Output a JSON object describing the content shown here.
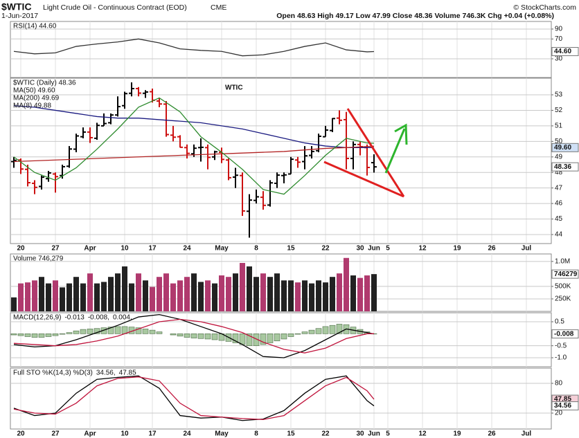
{
  "header": {
    "symbol": "$WTIC",
    "name": "Light Crude Oil - Continuous Contract (EOD)",
    "exchange": "CME",
    "date": "1-Jun-2017",
    "quote": "Open 48.63  High 49.17  Low 47.99  Close 48.36  Volume 746.3K  Chg +0.04 (+0.08%)",
    "credit": "© StockCharts.com"
  },
  "chart_data": {
    "type": "stock",
    "x": [
      "Mar 17",
      "Mar 20",
      "Mar 21",
      "Mar 22",
      "Mar 23",
      "Mar 24",
      "Mar 27",
      "Mar 28",
      "Mar 29",
      "Mar 30",
      "Mar 31",
      "Apr 3",
      "Apr 4",
      "Apr 5",
      "Apr 6",
      "Apr 7",
      "Apr 10",
      "Apr 11",
      "Apr 12",
      "Apr 13",
      "Apr 17",
      "Apr 18",
      "Apr 19",
      "Apr 20",
      "Apr 21",
      "Apr 24",
      "Apr 25",
      "Apr 26",
      "Apr 27",
      "Apr 28",
      "May 1",
      "May 2",
      "May 3",
      "May 4",
      "May 5",
      "May 8",
      "May 9",
      "May 10",
      "May 11",
      "May 12",
      "May 15",
      "May 16",
      "May 17",
      "May 18",
      "May 19",
      "May 22",
      "May 23",
      "May 24",
      "May 25",
      "May 26",
      "May 30",
      "May 31",
      "Jun 1"
    ],
    "xticks": [
      {
        "value": "Mar 20",
        "label": "20"
      },
      {
        "value": "Mar 27",
        "label": "27"
      },
      {
        "value": "Apr 3",
        "label": "Apr"
      },
      {
        "value": "Apr 10",
        "label": "10"
      },
      {
        "value": "Apr 17",
        "label": "17"
      },
      {
        "value": "Apr 24",
        "label": "24"
      },
      {
        "value": "May 1",
        "label": "May"
      },
      {
        "value": "May 8",
        "label": "8"
      },
      {
        "value": "May 15",
        "label": "15"
      },
      {
        "value": "May 22",
        "label": "22"
      },
      {
        "value": "May 30",
        "label": "30"
      },
      {
        "value": "Jun 1",
        "label": "Jun"
      },
      {
        "value": "Jun 5",
        "label": "5"
      },
      {
        "value": "Jun 12",
        "label": "12"
      },
      {
        "value": "Jun 19",
        "label": "19"
      },
      {
        "value": "Jun 26",
        "label": "26"
      },
      {
        "value": "Jul 3",
        "label": "Jul"
      }
    ],
    "panels": [
      {
        "type": "line",
        "title": "RSI(14) 44.60",
        "ylim": [
          -7.7,
          105.3
        ],
        "yticks": [
          90,
          70,
          30
        ],
        "grid": true,
        "markers": [
          {
            "value": 44.6,
            "label": "44.60",
            "color": "#ffffff"
          }
        ],
        "series": [
          {
            "color": "#333333",
            "x": [
              "Mar 17",
              "Mar 22",
              "Mar 27",
              "Mar 30",
              "Apr 4",
              "Apr 7",
              "Apr 12",
              "Apr 18",
              "Apr 21",
              "Apr 26",
              "May 1",
              "May 4",
              "May 9",
              "May 12",
              "May 17",
              "May 22",
              "May 25",
              "May 31",
              "Jun 1"
            ],
            "values": [
              45,
              40,
              42,
              55,
              60,
              64,
              70,
              62,
              50,
              47,
              45,
              36,
              38,
              45,
              55,
              62,
              48,
              44,
              44.6
            ]
          }
        ]
      },
      {
        "type": "ohlc",
        "title": "$WTIC (Daily) 48.36",
        "annotation": "WTIC",
        "legend": "list",
        "ylim": [
          43.42,
          54.07
        ],
        "yticks": [
          44,
          45,
          46,
          47,
          48,
          49,
          50,
          51,
          52,
          53
        ],
        "grid": true,
        "up_color": "#000000",
        "down_color": "#cc1111",
        "open": [
          48.7,
          48.8,
          48.2,
          47.3,
          47.1,
          47.6,
          47.9,
          47.8,
          48.4,
          49.5,
          50.3,
          50.6,
          50.2,
          51.0,
          51.2,
          51.7,
          52.3,
          53.1,
          53.4,
          53.1,
          53.2,
          52.6,
          52.4,
          50.4,
          50.3,
          49.6,
          49.2,
          49.6,
          49.6,
          49.0,
          49.3,
          48.8,
          47.7,
          47.8,
          45.5,
          46.2,
          46.4,
          45.9,
          47.3,
          47.8,
          47.9,
          48.8,
          48.7,
          49.1,
          49.4,
          50.3,
          50.7,
          51.5,
          51.4,
          48.9,
          49.8,
          49.6,
          48.63
        ],
        "high": [
          49.0,
          48.9,
          48.5,
          47.5,
          47.8,
          48.1,
          48.0,
          48.5,
          49.7,
          50.5,
          50.9,
          50.9,
          51.2,
          51.8,
          51.8,
          52.9,
          53.2,
          53.8,
          53.5,
          53.3,
          53.4,
          52.8,
          52.6,
          51.0,
          50.4,
          49.8,
          49.8,
          50.2,
          49.8,
          49.4,
          49.6,
          48.9,
          48.3,
          48.0,
          46.6,
          46.9,
          46.8,
          47.5,
          48.0,
          48.0,
          49.0,
          49.0,
          49.7,
          49.7,
          50.5,
          51.0,
          51.5,
          52.0,
          51.9,
          50.0,
          50.0,
          49.8,
          49.17
        ],
        "low": [
          48.3,
          47.9,
          47.1,
          46.6,
          46.9,
          47.4,
          46.7,
          47.6,
          48.3,
          49.3,
          50.2,
          49.9,
          50.1,
          51.0,
          51.1,
          51.6,
          52.1,
          52.9,
          52.9,
          52.8,
          52.5,
          52.2,
          50.3,
          50.0,
          49.6,
          48.9,
          49.0,
          48.7,
          48.2,
          48.8,
          48.6,
          47.5,
          47.0,
          45.2,
          43.8,
          46.0,
          45.6,
          45.8,
          47.0,
          47.3,
          47.9,
          48.3,
          48.2,
          48.9,
          49.3,
          50.3,
          50.6,
          51.1,
          48.2,
          48.2,
          49.1,
          47.8,
          47.99
        ],
        "close": [
          48.78,
          48.22,
          47.34,
          47.04,
          47.7,
          47.97,
          47.73,
          48.37,
          49.51,
          50.35,
          50.6,
          50.24,
          51.03,
          51.15,
          51.7,
          52.24,
          53.08,
          53.4,
          53.11,
          53.18,
          52.65,
          52.41,
          50.44,
          50.27,
          49.62,
          49.23,
          49.56,
          49.62,
          48.97,
          49.33,
          48.84,
          47.66,
          47.82,
          45.52,
          46.22,
          46.43,
          45.88,
          47.33,
          47.83,
          47.84,
          48.85,
          48.66,
          49.07,
          49.35,
          50.33,
          50.73,
          51.47,
          51.36,
          48.9,
          49.8,
          49.66,
          48.32,
          48.36
        ],
        "markers": [
          {
            "value": 49.6,
            "label": "49.60",
            "color": "#cfe0f5"
          },
          {
            "value": 48.36,
            "label": "48.36",
            "color": "#ffffff"
          }
        ],
        "series": [
          {
            "name": "MA(50) 49.60",
            "color": "#1a1a80",
            "x": [
              "Mar 17",
              "Mar 22",
              "Mar 27",
              "Mar 30",
              "Apr 4",
              "Apr 7",
              "Apr 12",
              "Apr 18",
              "Apr 21",
              "Apr 26",
              "May 1",
              "May 4",
              "May 9",
              "May 12",
              "May 17",
              "May 22",
              "May 25",
              "May 31",
              "Jun 1"
            ],
            "values": [
              52.3,
              52.2,
              52.0,
              51.8,
              51.6,
              51.5,
              51.5,
              51.4,
              51.3,
              51.2,
              51.0,
              50.8,
              50.5,
              50.2,
              49.9,
              49.7,
              49.6,
              49.6,
              49.6
            ]
          },
          {
            "name": "MA(200) 49.69",
            "color": "#b22222",
            "x": [
              "Mar 17",
              "Mar 22",
              "Mar 27",
              "Mar 30",
              "Apr 4",
              "Apr 7",
              "Apr 12",
              "Apr 18",
              "Apr 21",
              "Apr 26",
              "May 1",
              "May 4",
              "May 9",
              "May 12",
              "May 17",
              "May 22",
              "May 25",
              "May 31",
              "Jun 1"
            ],
            "values": [
              48.7,
              48.75,
              48.8,
              48.85,
              48.9,
              48.95,
              49.0,
              49.05,
              49.1,
              49.15,
              49.2,
              49.25,
              49.3,
              49.35,
              49.45,
              49.55,
              49.6,
              49.67,
              49.69
            ]
          },
          {
            "name": "MA(8) 49.88",
            "color": "#2e8b2e",
            "x": [
              "Mar 17",
              "Mar 22",
              "Mar 27",
              "Mar 30",
              "Apr 4",
              "Apr 7",
              "Apr 12",
              "Apr 18",
              "Apr 21",
              "Apr 26",
              "May 1",
              "May 4",
              "May 9",
              "May 12",
              "May 17",
              "May 22",
              "May 25",
              "May 31",
              "Jun 1"
            ],
            "values": [
              49.0,
              48.0,
              47.5,
              48.3,
              49.5,
              50.8,
              52.2,
              52.8,
              51.9,
              50.3,
              49.3,
              48.2,
              46.9,
              46.6,
              47.8,
              49.1,
              50.2,
              49.9,
              49.88
            ]
          }
        ]
      },
      {
        "type": "bar",
        "title": "Volume 746,279",
        "ylim": [
          0,
          1150000
        ],
        "grid": true,
        "yticks": [
          {
            "value": 1000000,
            "label": "1.0M"
          },
          {
            "value": 500000,
            "label": "500K"
          },
          {
            "value": 250000,
            "label": "250K"
          }
        ],
        "up_color": "#222222",
        "down_color": "#b03a6e",
        "markers": [
          {
            "value": 746279,
            "label": "746279",
            "color": "#ffffff"
          }
        ],
        "values": [
          280000,
          560000,
          580000,
          620000,
          690000,
          560000,
          620000,
          480000,
          560000,
          690000,
          560000,
          760000,
          560000,
          590000,
          690000,
          760000,
          900000,
          560000,
          760000,
          620000,
          490000,
          690000,
          760000,
          560000,
          620000,
          690000,
          760000,
          590000,
          620000,
          560000,
          720000,
          690000,
          760000,
          970000,
          900000,
          690000,
          760000,
          690000,
          760000,
          620000,
          620000,
          580000,
          620000,
          560000,
          620000,
          580000,
          690000,
          760000,
          1070000,
          720000,
          670000,
          720000,
          746279
        ]
      },
      {
        "type": "line",
        "title": "MACD(12,26,9)",
        "legend": "inline",
        "ylim": [
          -1.375,
          0.875
        ],
        "grid": true,
        "yticks": [
          0.5,
          -0.5,
          {
            "value": -1,
            "label": "-1.0"
          }
        ],
        "markers": [
          {
            "value": -0.008,
            "label": "-0.008",
            "color": "#ffffff"
          }
        ],
        "series": [
          {
            "type": "bar",
            "name": "-0.013",
            "color": "#a8c8a0",
            "values": [
              -0.05,
              -0.08,
              -0.12,
              -0.15,
              -0.15,
              -0.12,
              -0.08,
              -0.02,
              0.05,
              0.12,
              0.18,
              0.2,
              0.22,
              0.25,
              0.28,
              0.3,
              0.3,
              0.28,
              0.25,
              0.2,
              0.15,
              0.08,
              0.0,
              -0.05,
              -0.1,
              -0.15,
              -0.18,
              -0.2,
              -0.22,
              -0.25,
              -0.28,
              -0.32,
              -0.38,
              -0.45,
              -0.5,
              -0.5,
              -0.45,
              -0.38,
              -0.3,
              -0.22,
              -0.12,
              -0.02,
              0.08,
              0.15,
              0.22,
              0.3,
              0.35,
              0.4,
              0.38,
              0.28,
              0.18,
              0.08,
              -0.013
            ]
          },
          {
            "name": "-0.008,",
            "color": "#000000",
            "x": [
              "Mar 17",
              "Mar 22",
              "Mar 27",
              "Mar 30",
              "Apr 4",
              "Apr 7",
              "Apr 12",
              "Apr 18",
              "Apr 21",
              "Apr 26",
              "May 1",
              "May 4",
              "May 9",
              "May 12",
              "May 17",
              "May 22",
              "May 25",
              "May 31",
              "Jun 1"
            ],
            "values": [
              -0.45,
              -0.55,
              -0.5,
              -0.25,
              0.05,
              0.35,
              0.7,
              0.8,
              0.6,
              0.3,
              0.0,
              -0.45,
              -0.95,
              -1.0,
              -0.7,
              -0.25,
              0.2,
              0.05,
              -0.008
            ]
          },
          {
            "name": "0.004,",
            "color": "#c0143c",
            "x": [
              "Mar 17",
              "Mar 22",
              "Mar 27",
              "Mar 30",
              "Apr 4",
              "Apr 7",
              "Apr 12",
              "Apr 18",
              "Apr 21",
              "Apr 26",
              "May 1",
              "May 4",
              "May 9",
              "May 12",
              "May 17",
              "May 22",
              "May 25",
              "May 31",
              "Jun 1"
            ],
            "values": [
              -0.4,
              -0.45,
              -0.5,
              -0.45,
              -0.3,
              -0.1,
              0.2,
              0.5,
              0.6,
              0.5,
              0.3,
              0.05,
              -0.35,
              -0.65,
              -0.8,
              -0.6,
              -0.2,
              0.0,
              0.004
            ]
          }
        ]
      },
      {
        "type": "line",
        "title": "Full STO %K(14,3) %D(3)",
        "legend": "inline",
        "ylim": [
          -12.1,
          110.7
        ],
        "yticks": [
          80,
          20
        ],
        "grid": true,
        "markers": [
          {
            "value": 47.85,
            "label": "47.85",
            "color": "#f5d0d8"
          },
          {
            "value": 34.56,
            "label": "34.56",
            "color": "#ffffff"
          }
        ],
        "series": [
          {
            "name": "34.56,",
            "color": "#000000",
            "x": [
              "Mar 17",
              "Mar 22",
              "Mar 27",
              "Mar 30",
              "Apr 4",
              "Apr 7",
              "Apr 12",
              "Apr 18",
              "Apr 21",
              "Apr 26",
              "May 1",
              "May 4",
              "May 9",
              "May 12",
              "May 17",
              "May 22",
              "May 25",
              "May 31",
              "Jun 1"
            ],
            "values": [
              30,
              15,
              20,
              60,
              88,
              92,
              95,
              70,
              15,
              10,
              12,
              5,
              8,
              25,
              60,
              88,
              95,
              45,
              34.56
            ]
          },
          {
            "name": "47.85",
            "color": "#c0143c",
            "x": [
              "Mar 17",
              "Mar 22",
              "Mar 27",
              "Mar 30",
              "Apr 4",
              "Apr 7",
              "Apr 12",
              "Apr 18",
              "Apr 21",
              "Apr 26",
              "May 1",
              "May 4",
              "May 9",
              "May 12",
              "May 17",
              "May 22",
              "May 25",
              "May 31",
              "Jun 1"
            ],
            "values": [
              28,
              20,
              18,
              40,
              75,
              90,
              93,
              85,
              40,
              15,
              12,
              9,
              7,
              15,
              45,
              75,
              92,
              65,
              47.85
            ]
          }
        ]
      }
    ]
  }
}
